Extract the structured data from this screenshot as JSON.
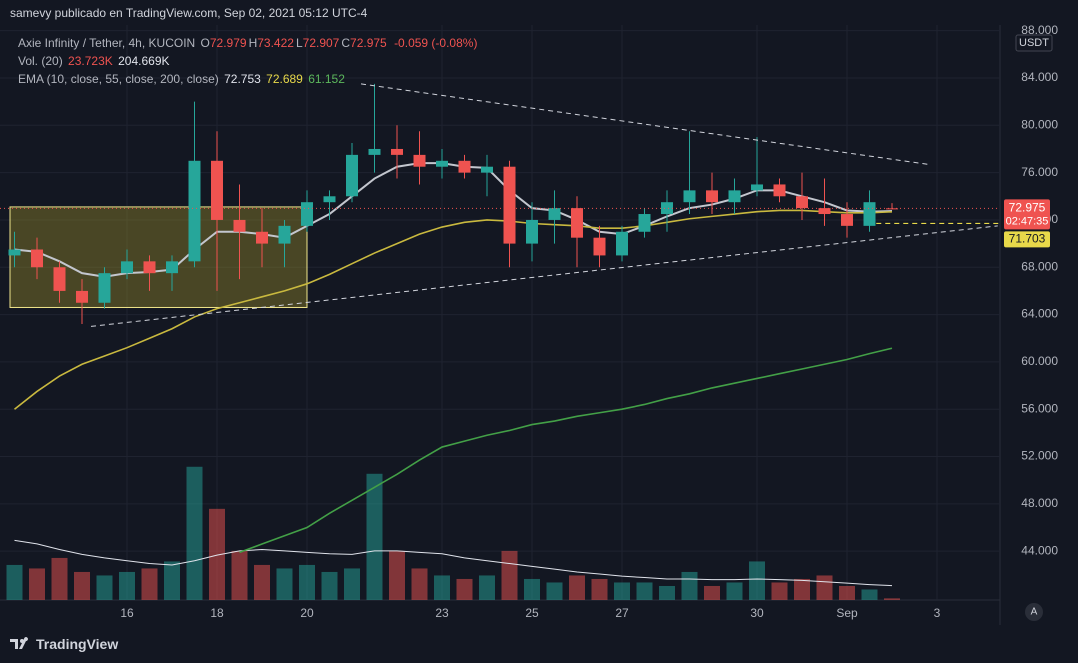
{
  "header": {
    "publisher": "samevy publicado en TradingView.com, Sep 02, 2021 05:12 UTC-4"
  },
  "chart_data": {
    "type": "candlestick",
    "symbol": "Axie Infinity / Tether, 4h, KUCOIN",
    "ohlc_legend": [
      {
        "key": "O",
        "value": "72.979"
      },
      {
        "key": "H",
        "value": "73.422"
      },
      {
        "key": "L",
        "value": "72.907"
      },
      {
        "key": "C",
        "value": "72.975"
      }
    ],
    "change": "-0.059 (-0.08%)",
    "volume_legend": {
      "name": "Vol. (20)",
      "value": "23.723K",
      "ma": "204.669K"
    },
    "ema_legend": {
      "name": "EMA (10, close, 55, close, 200, close)",
      "values": [
        "72.753",
        "72.689",
        "61.152"
      ]
    },
    "categories": [
      null,
      null,
      null,
      null,
      null,
      "16",
      null,
      null,
      null,
      "18",
      null,
      null,
      null,
      "20",
      null,
      null,
      null,
      null,
      null,
      "23",
      null,
      null,
      null,
      "25",
      null,
      null,
      null,
      "27",
      null,
      null,
      null,
      null,
      null,
      "30",
      null,
      null,
      null,
      "Sep",
      null,
      null,
      null,
      "3",
      null,
      null
    ],
    "open": [
      69,
      69.5,
      68,
      66,
      65,
      67.5,
      68.5,
      67.5,
      68.5,
      77,
      72,
      71,
      70,
      71.5,
      73.5,
      74,
      77.5,
      78,
      77.5,
      76.5,
      77,
      76,
      76.5,
      70,
      72,
      73,
      70.5,
      69,
      71,
      72.5,
      73.5,
      74.5,
      73.5,
      74.5,
      75,
      74,
      73,
      72.5,
      71.5,
      72.979,
      null,
      null,
      null,
      null
    ],
    "high": [
      71,
      70.5,
      68.5,
      67,
      68,
      69.5,
      69,
      69,
      82,
      79.5,
      75,
      73,
      72,
      74.5,
      74.5,
      78.5,
      83.5,
      80,
      79.5,
      78,
      77.5,
      77.5,
      77,
      73.5,
      74.5,
      74,
      71.5,
      71.5,
      73,
      74.5,
      79.5,
      76,
      75.5,
      79,
      75.5,
      76,
      75.5,
      73.5,
      74.5,
      73.422,
      null,
      null,
      null,
      null
    ],
    "low": [
      68,
      67,
      65,
      63.2,
      64.5,
      67,
      66,
      66,
      68,
      66,
      67,
      68,
      68,
      71,
      72,
      73.5,
      76,
      75.5,
      75,
      75.5,
      75.5,
      74,
      68,
      68.5,
      70,
      68,
      68,
      68.5,
      70.5,
      71,
      72.5,
      72.5,
      72.5,
      74,
      73.5,
      72,
      71.5,
      70.5,
      71,
      72.907,
      null,
      null,
      null,
      null
    ],
    "close": [
      69.5,
      68,
      66,
      65,
      67.5,
      68.5,
      67.5,
      68.5,
      77,
      72,
      71,
      70,
      71.5,
      73.5,
      74,
      77.5,
      78,
      77.5,
      76.5,
      77,
      76,
      76.5,
      70,
      72,
      73,
      70.5,
      69,
      71,
      72.5,
      73.5,
      74.5,
      73.5,
      74.5,
      75,
      74,
      73,
      72.5,
      71.5,
      73.5,
      72.975,
      null,
      null,
      null,
      null
    ],
    "up_color": "#26a69a",
    "down_color": "#ef5350",
    "volume": [
      500,
      450,
      600,
      400,
      350,
      400,
      450,
      550,
      1900,
      1300,
      700,
      500,
      450,
      500,
      400,
      450,
      1800,
      700,
      450,
      350,
      300,
      350,
      700,
      300,
      250,
      350,
      300,
      250,
      250,
      200,
      400,
      200,
      250,
      550,
      250,
      300,
      350,
      200,
      150,
      23.723,
      null,
      null,
      null,
      null
    ],
    "volume_ma": [
      850,
      800,
      720,
      650,
      600,
      560,
      520,
      500,
      560,
      640,
      700,
      720,
      700,
      680,
      660,
      650,
      700,
      700,
      680,
      660,
      600,
      560,
      520,
      480,
      440,
      400,
      370,
      340,
      320,
      300,
      300,
      290,
      290,
      300,
      290,
      280,
      260,
      240,
      220,
      204.669,
      null,
      null,
      null,
      null
    ],
    "volume_ma_color": "#e0e3eb",
    "y2lim": [
      0,
      8200
    ],
    "emas": [
      {
        "color": "#c3c6ce",
        "values": [
          69.5,
          69.3,
          68.5,
          67.5,
          67.2,
          67.5,
          67.6,
          67.8,
          69.5,
          71,
          71,
          70.8,
          70.5,
          71.5,
          72.5,
          74,
          75.5,
          76.5,
          76.8,
          76.8,
          76.5,
          76.4,
          74.5,
          73,
          72.8,
          72,
          71,
          70.8,
          71.5,
          72.3,
          73,
          73.3,
          73.8,
          74.5,
          74.5,
          74,
          73.5,
          72.8,
          72.7,
          72.753,
          null,
          null,
          null,
          null
        ]
      },
      {
        "color": "#c9b93f",
        "values": [
          56,
          57.5,
          58.8,
          59.8,
          60.5,
          61.2,
          62,
          62.8,
          63.8,
          64.5,
          65,
          65.5,
          66,
          66.6,
          67.4,
          68.3,
          69.2,
          70,
          70.8,
          71.4,
          71.8,
          72,
          71.9,
          71.7,
          71.6,
          71.5,
          71.3,
          71.3,
          71.5,
          71.8,
          72.1,
          72.3,
          72.5,
          72.7,
          72.8,
          72.8,
          72.7,
          72.6,
          72.6,
          72.689,
          null,
          null,
          null,
          null
        ]
      },
      {
        "color": "#43a047",
        "values": [
          null,
          null,
          null,
          null,
          null,
          null,
          null,
          null,
          null,
          null,
          43.9,
          44.6,
          45.3,
          46,
          47.2,
          48.3,
          49.4,
          50.5,
          51.7,
          52.8,
          53.3,
          53.8,
          54.2,
          54.7,
          55,
          55.4,
          55.7,
          56,
          56.4,
          56.9,
          57.3,
          57.8,
          58.2,
          58.6,
          59,
          59.4,
          59.8,
          60.2,
          60.7,
          61.152,
          null,
          null,
          null,
          null
        ]
      }
    ],
    "ylim": [
      39.87,
      88.48
    ],
    "yticks": [
      {
        "value": 44,
        "label": "44.000"
      },
      {
        "value": 48,
        "label": "48.000"
      },
      {
        "value": 52,
        "label": "52.000"
      },
      {
        "value": 56,
        "label": "56.000"
      },
      {
        "value": 60,
        "label": "60.000"
      },
      {
        "value": 64,
        "label": "64.000"
      },
      {
        "value": 68,
        "label": "68.000"
      },
      {
        "value": 72,
        "label": "72.000"
      },
      {
        "value": 76,
        "label": "76.000"
      },
      {
        "value": 80,
        "label": "80.000"
      },
      {
        "value": 84,
        "label": "84.000"
      },
      {
        "value": 88,
        "label": "88.000"
      }
    ],
    "grid": true,
    "currency": "USDT",
    "last_price": {
      "value": 72.975,
      "countdown": "02:47:35",
      "color": "#ef5350"
    },
    "horizontal_line": {
      "value": 71.703,
      "color": "#e8d94a"
    },
    "range_box": {
      "from": -0.2,
      "to": 13,
      "top": 73.1,
      "bottom": 64.6
    },
    "trendlines": [
      {
        "from": [
          15.4,
          83.5
        ],
        "to": [
          40.6,
          76.7
        ]
      },
      {
        "from": [
          3.4,
          63
        ],
        "to": [
          43.7,
          71.5
        ]
      }
    ]
  },
  "footer": {
    "brand": "TradingView",
    "scale_button": "A"
  }
}
